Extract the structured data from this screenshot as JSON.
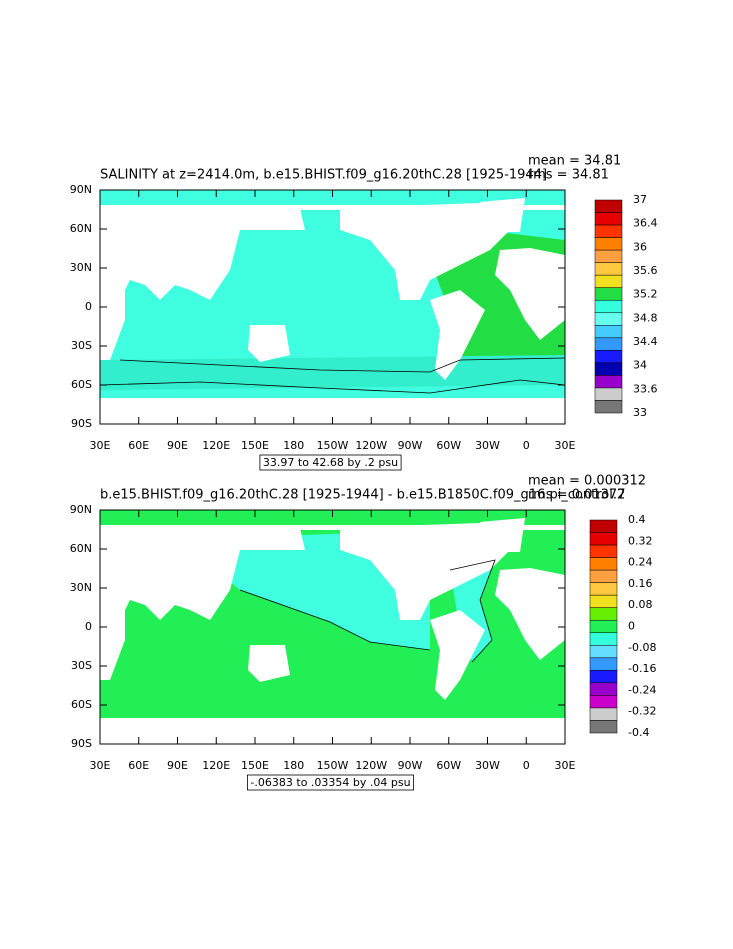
{
  "panels": [
    {
      "title": "SALINITY at z=2414.0m, b.e15.BHIST.f09_g16.20thC.28 [1925-1944]",
      "mean": "mean = 34.81",
      "rms": "rms = 34.81",
      "lat_labels": [
        "90N",
        "60N",
        "30N",
        "0",
        "30S",
        "60S",
        "90S"
      ],
      "lon_labels": [
        "30E",
        "60E",
        "90E",
        "120E",
        "150E",
        "180",
        "150W",
        "120W",
        "90W",
        "60W",
        "30W",
        "0",
        "30E"
      ],
      "range_label": "33.97 to 42.68 by .2 psu",
      "colorbar": {
        "colors": [
          "#c00000",
          "#e60000",
          "#ff3300",
          "#ff7f00",
          "#ffa040",
          "#ffc840",
          "#f0e020",
          "#22dd44",
          "#33ffdd",
          "#66ffee",
          "#44ccff",
          "#3399ff",
          "#1a1aff",
          "#0000b0",
          "#9900cc",
          "#cccccc",
          "#777777"
        ],
        "labels": [
          "37",
          "36.4",
          "36",
          "35.6",
          "35.2",
          "34.8",
          "34.4",
          "34",
          "33.6",
          "33"
        ]
      }
    },
    {
      "title": "b.e15.BHIST.f09_g16.20thC.28 [1925-1944] - b.e15.B1850C.f09_g16.pi_control.2",
      "mean": "mean = 0.000312",
      "rms": "rms = 0.01377",
      "lat_labels": [
        "90N",
        "60N",
        "30N",
        "0",
        "30S",
        "60S",
        "90S"
      ],
      "lon_labels": [
        "30E",
        "60E",
        "90E",
        "120E",
        "150E",
        "180",
        "150W",
        "120W",
        "90W",
        "60W",
        "30W",
        "0",
        "30E"
      ],
      "range_label": "-.06383 to .03354 by .04 psu",
      "colorbar": {
        "colors": [
          "#c00000",
          "#e60000",
          "#ff3300",
          "#ff7f00",
          "#ffa040",
          "#ffc840",
          "#f0e020",
          "#66ee00",
          "#22ee55",
          "#33ffdd",
          "#66ddff",
          "#3399ff",
          "#1a1aff",
          "#9900cc",
          "#cc00cc",
          "#cccccc",
          "#777777"
        ],
        "labels": [
          "0.4",
          "0.32",
          "0.24",
          "0.16",
          "0.08",
          "0",
          "-0.08",
          "-0.16",
          "-0.24",
          "-0.32",
          "-0.4"
        ]
      }
    }
  ]
}
